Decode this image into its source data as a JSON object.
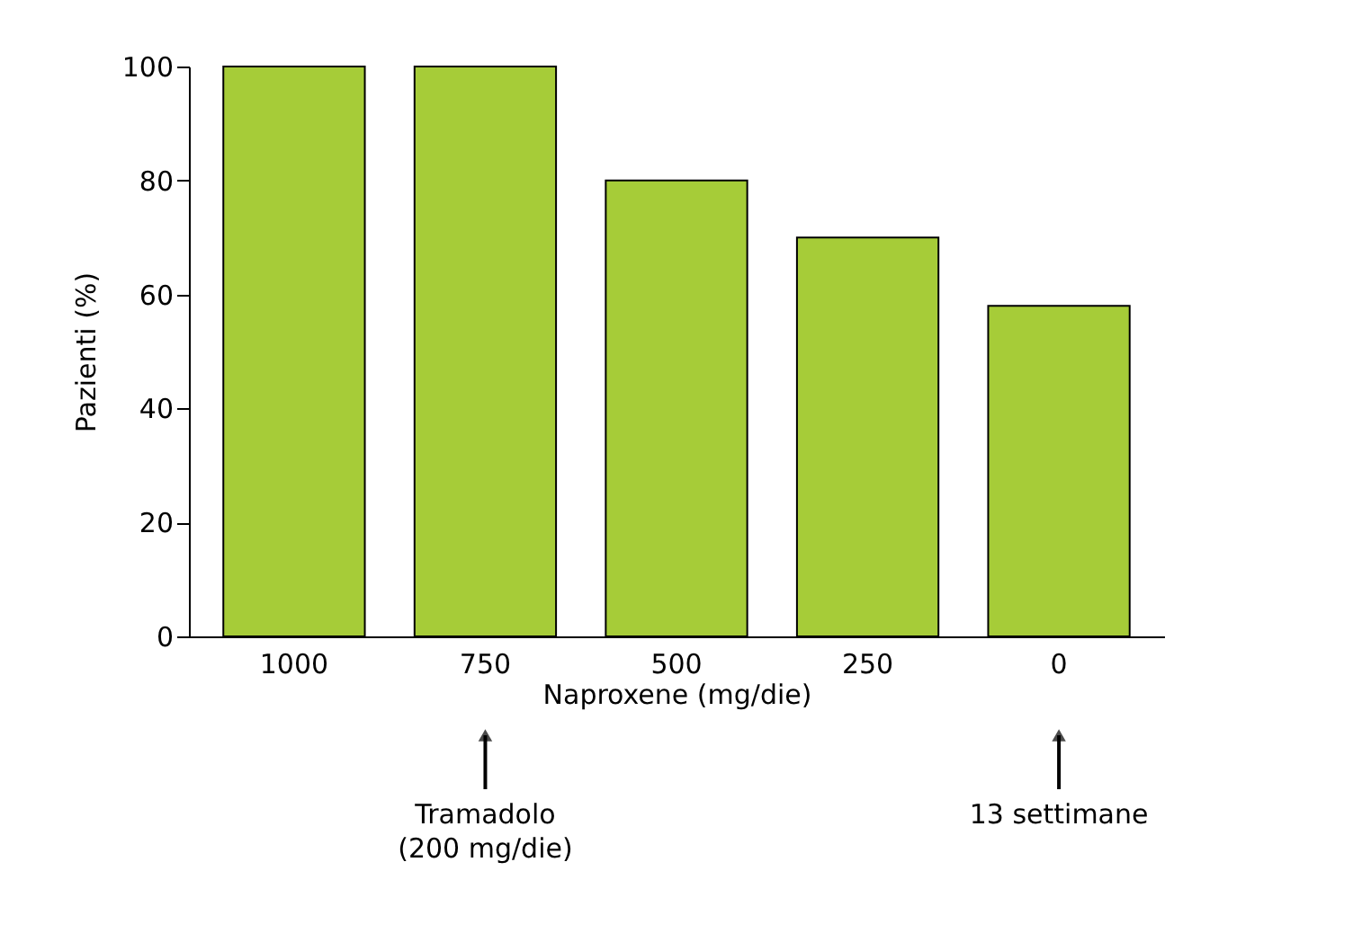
{
  "chart_data": {
    "type": "bar",
    "xlabel": "Naproxene (mg/die)",
    "ylabel": "Pazienti (%)",
    "categories": [
      "1000",
      "750",
      "500",
      "250",
      "0"
    ],
    "values": [
      100,
      100,
      80,
      70,
      58
    ],
    "color": "#a6cc38",
    "ylim": [
      0,
      100
    ],
    "yticks": [
      0,
      20,
      40,
      60,
      80,
      100
    ],
    "grid": false,
    "annotations": [
      {
        "text": "Tramadolo\n(200 mg/die)",
        "x": "750"
      },
      {
        "text": "13 settimane",
        "x": "0"
      }
    ]
  }
}
